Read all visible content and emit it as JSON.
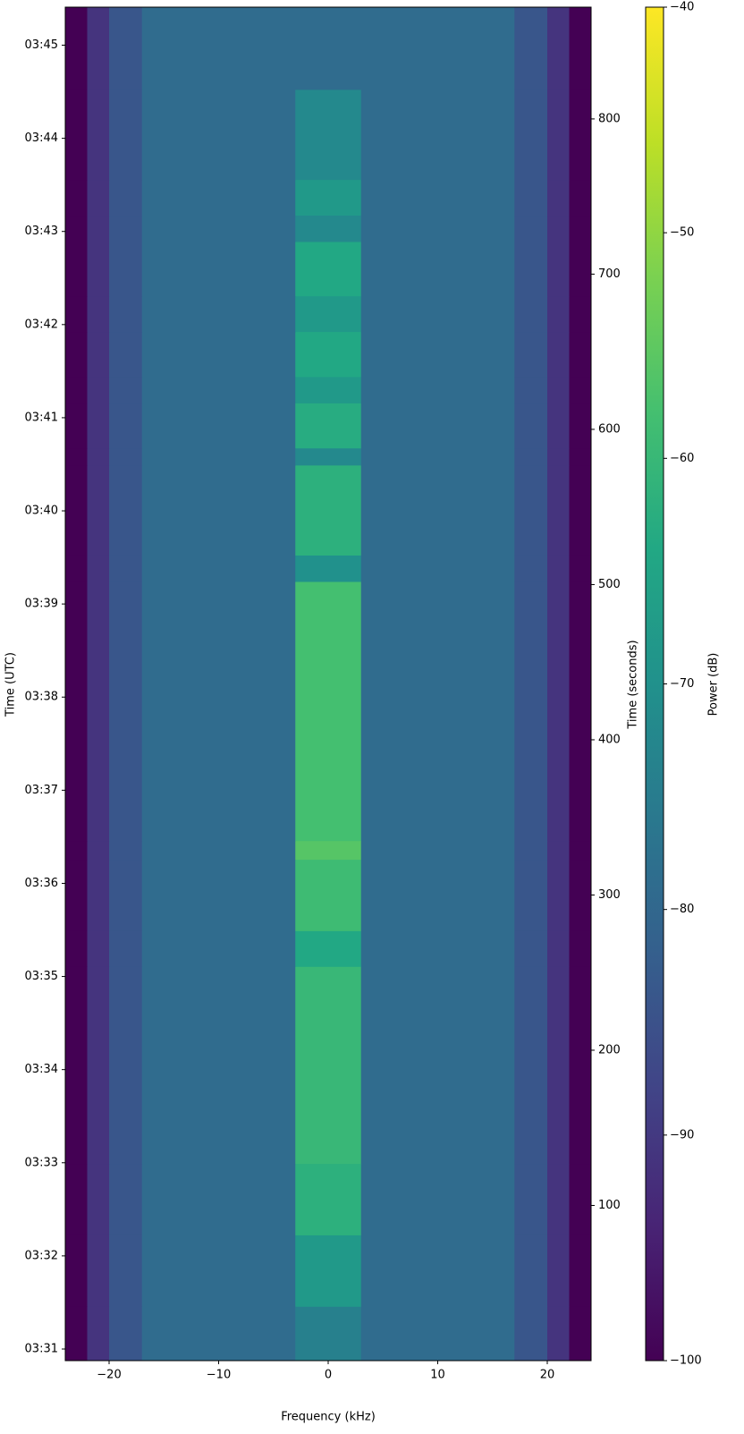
{
  "chart_data": {
    "type": "heatmap",
    "xlabel": "Frequency (kHz)",
    "ylabel": "Time (UTC)",
    "y2label": "Time (seconds)",
    "colorbar_label": "Power (dB)",
    "colormap": "viridis",
    "clim": [
      -100,
      -40
    ],
    "colorbar_ticks": [
      {
        "value": -100,
        "label": "−100"
      },
      {
        "value": -90,
        "label": "−90"
      },
      {
        "value": -80,
        "label": "−80"
      },
      {
        "value": -70,
        "label": "−70"
      },
      {
        "value": -60,
        "label": "−60"
      },
      {
        "value": -50,
        "label": "−50"
      },
      {
        "value": -40,
        "label": "−40"
      }
    ],
    "xlim": [
      -24,
      24
    ],
    "xticks": [
      {
        "value": -20,
        "label": "−20"
      },
      {
        "value": -10,
        "label": "−10"
      },
      0,
      10,
      20
    ],
    "ylim": [
      0,
      872
    ],
    "yticks": [
      {
        "value": 7.5,
        "label": "03:31"
      },
      {
        "value": 67.5,
        "label": "03:32"
      },
      {
        "value": 127.5,
        "label": "03:33"
      },
      {
        "value": 187.5,
        "label": "03:34"
      },
      {
        "value": 247.5,
        "label": "03:35"
      },
      {
        "value": 307.5,
        "label": "03:36"
      },
      {
        "value": 367.5,
        "label": "03:37"
      },
      {
        "value": 427.5,
        "label": "03:38"
      },
      {
        "value": 487.5,
        "label": "03:39"
      },
      {
        "value": 547.5,
        "label": "03:40"
      },
      {
        "value": 607.5,
        "label": "03:41"
      },
      {
        "value": 667.5,
        "label": "03:42"
      },
      {
        "value": 727.5,
        "label": "03:43"
      },
      {
        "value": 787.5,
        "label": "03:44"
      },
      {
        "value": 847.5,
        "label": "03:45"
      }
    ],
    "y2lim": [
      0,
      872
    ],
    "y2ticks": [
      100,
      200,
      300,
      400,
      500,
      600,
      700,
      800
    ],
    "grid": false,
    "x_edges": [
      -24,
      -22,
      -20,
      -17,
      -3,
      3,
      17,
      20,
      22,
      24
    ],
    "y_edges": [
      0,
      35,
      81,
      127,
      254,
      277,
      323,
      335,
      502,
      519,
      577,
      588,
      617,
      634,
      663,
      686,
      721,
      738,
      761,
      819,
      872
    ],
    "z": [
      [
        -100,
        -91,
        -84,
        -79,
        -74,
        -79,
        -84,
        -91,
        -100
      ],
      [
        -100,
        -91,
        -84,
        -79,
        -68,
        -79,
        -84,
        -91,
        -100
      ],
      [
        -100,
        -91,
        -84,
        -79,
        -62,
        -79,
        -84,
        -91,
        -100
      ],
      [
        -100,
        -91,
        -84,
        -79,
        -60,
        -79,
        -84,
        -91,
        -100
      ],
      [
        -100,
        -91,
        -84,
        -79,
        -64,
        -79,
        -84,
        -91,
        -100
      ],
      [
        -100,
        -91,
        -84,
        -79,
        -59,
        -79,
        -84,
        -91,
        -100
      ],
      [
        -100,
        -91,
        -84,
        -79,
        -56,
        -79,
        -84,
        -91,
        -100
      ],
      [
        -100,
        -91,
        -84,
        -79,
        -58,
        -79,
        -84,
        -91,
        -100
      ],
      [
        -100,
        -91,
        -84,
        -79,
        -70,
        -79,
        -84,
        -91,
        -100
      ],
      [
        -100,
        -91,
        -84,
        -79,
        -62,
        -79,
        -84,
        -91,
        -100
      ],
      [
        -100,
        -91,
        -84,
        -79,
        -72,
        -79,
        -84,
        -91,
        -100
      ],
      [
        -100,
        -91,
        -84,
        -79,
        -63,
        -79,
        -84,
        -91,
        -100
      ],
      [
        -100,
        -91,
        -84,
        -79,
        -68,
        -79,
        -84,
        -91,
        -100
      ],
      [
        -100,
        -91,
        -84,
        -79,
        -64,
        -79,
        -84,
        -91,
        -100
      ],
      [
        -100,
        -91,
        -84,
        -79,
        -68,
        -79,
        -84,
        -91,
        -100
      ],
      [
        -100,
        -91,
        -84,
        -79,
        -64,
        -79,
        -84,
        -91,
        -100
      ],
      [
        -100,
        -91,
        -84,
        -79,
        -72,
        -79,
        -84,
        -91,
        -100
      ],
      [
        -100,
        -91,
        -84,
        -79,
        -68,
        -79,
        -84,
        -91,
        -100
      ],
      [
        -100,
        -91,
        -84,
        -79,
        -72,
        -79,
        -84,
        -91,
        -100
      ],
      [
        -100,
        -91,
        -84,
        -79,
        -79,
        -79,
        -84,
        -91,
        -100
      ]
    ]
  }
}
